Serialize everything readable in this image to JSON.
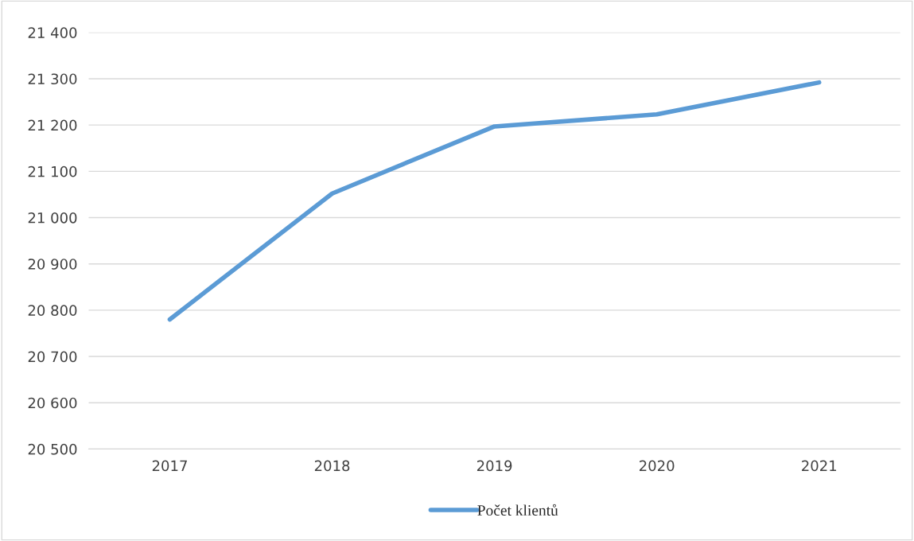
{
  "chart_data": {
    "type": "line",
    "categories": [
      "2017",
      "2018",
      "2019",
      "2020",
      "2021"
    ],
    "series": [
      {
        "name": "Počet klientů",
        "color": "#5b9bd5",
        "values": [
          20780,
          21052,
          21197,
          21223,
          21292
        ]
      }
    ],
    "ylim": [
      20500,
      21400
    ],
    "yticks": [
      {
        "value": 20500,
        "label": "20 500"
      },
      {
        "value": 20600,
        "label": "20 600"
      },
      {
        "value": 20700,
        "label": "20 700"
      },
      {
        "value": 20800,
        "label": "20 800"
      },
      {
        "value": 20900,
        "label": "20 900"
      },
      {
        "value": 21000,
        "label": "21 000"
      },
      {
        "value": 21100,
        "label": "21 100"
      },
      {
        "value": 21200,
        "label": "21 200"
      },
      {
        "value": 21300,
        "label": "21 300"
      },
      {
        "value": 21400,
        "label": "21 400"
      }
    ],
    "grid": "y",
    "legend": "bottom",
    "marker": "none",
    "line_style": "solid"
  }
}
